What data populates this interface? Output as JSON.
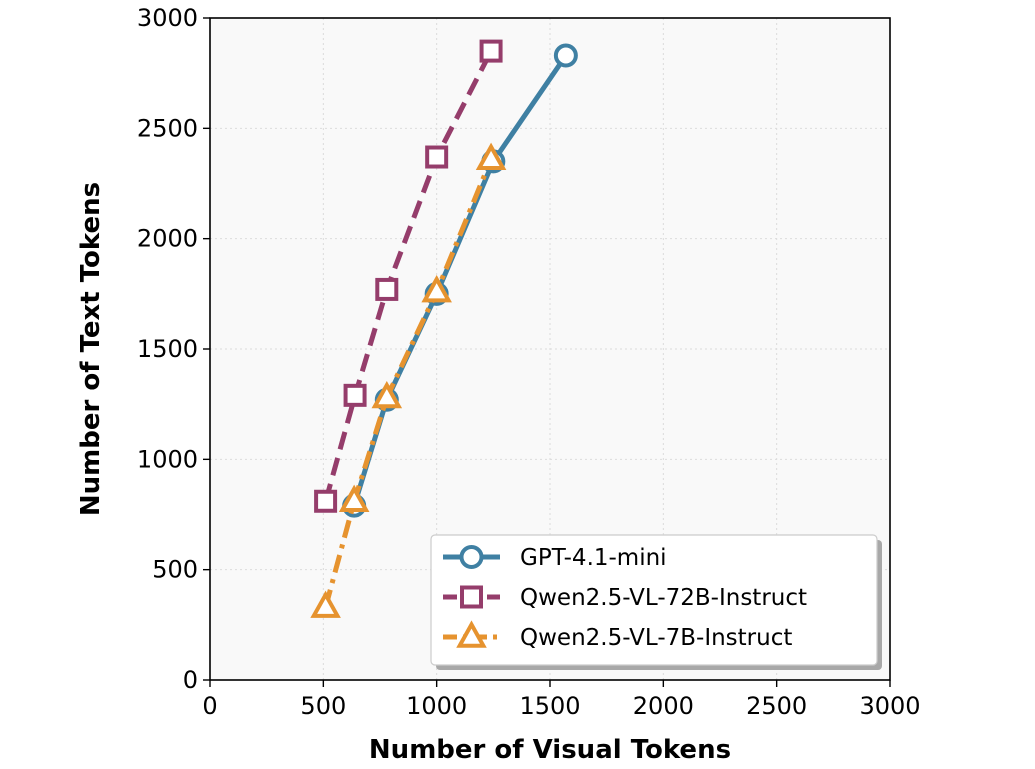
{
  "chart_data": {
    "type": "line",
    "title": "",
    "xlabel": "Number of Visual Tokens",
    "ylabel": "Number of Text Tokens",
    "xlim": [
      0,
      3000
    ],
    "ylim": [
      0,
      3000
    ],
    "xticks": [
      0,
      500,
      1000,
      1500,
      2000,
      2500,
      3000
    ],
    "yticks": [
      0,
      500,
      1000,
      1500,
      2000,
      2500,
      3000
    ],
    "grid": true,
    "legend_position": "lower-right",
    "series": [
      {
        "name": "GPT-4.1-mini",
        "color": "#3f80a3",
        "marker": "circle",
        "line_style": "solid",
        "points": [
          [
            636,
            790
          ],
          [
            780,
            1270
          ],
          [
            1000,
            1750
          ],
          [
            1250,
            2350
          ],
          [
            1570,
            2830
          ]
        ]
      },
      {
        "name": "Qwen2.5-VL-72B-Instruct",
        "color": "#953d6b",
        "marker": "square",
        "line_style": "dashed",
        "points": [
          [
            510,
            810
          ],
          [
            640,
            1290
          ],
          [
            780,
            1770
          ],
          [
            1000,
            2370
          ],
          [
            1240,
            2850
          ]
        ]
      },
      {
        "name": "Qwen2.5-VL-7B-Instruct",
        "color": "#e6932f",
        "marker": "triangle",
        "line_style": "dashdot",
        "points": [
          [
            510,
            330
          ],
          [
            636,
            810
          ],
          [
            780,
            1280
          ],
          [
            1000,
            1760
          ],
          [
            1240,
            2360
          ]
        ]
      }
    ]
  }
}
